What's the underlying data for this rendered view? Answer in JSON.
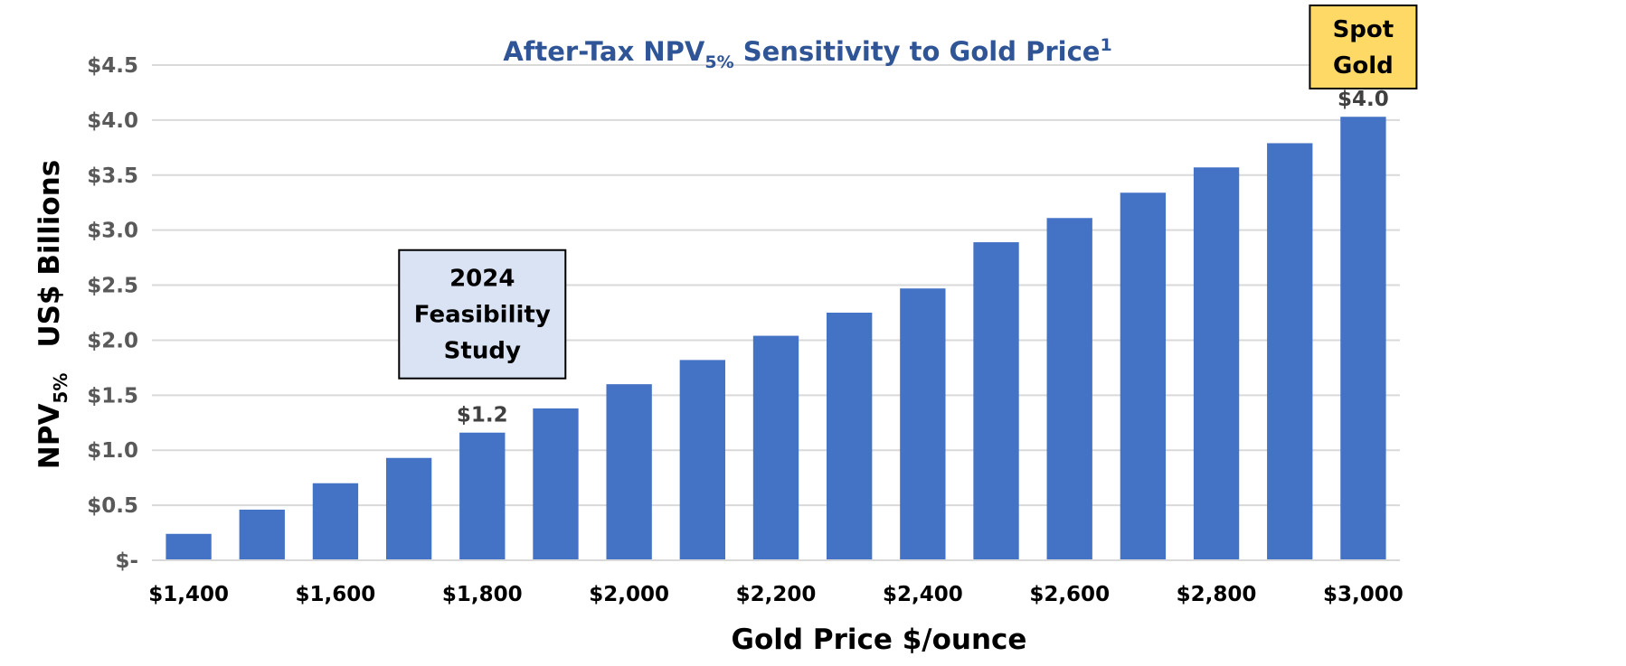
{
  "colors": {
    "bar": "#4472c4",
    "title": "#2f5597",
    "grid": "#d9d9d9",
    "feasibility_box_fill": "#dae3f3",
    "spot_box_fill": "#ffd966"
  },
  "chart_data": {
    "type": "bar",
    "title": {
      "prefix": "After-Tax NPV",
      "sub": "5%",
      "suffix": " Sensitivity to Gold Price",
      "sup": "1"
    },
    "xlabel": "Gold Price $/ounce",
    "ylabel": {
      "npv": "NPV",
      "sub": "5%",
      "units": "US$ Billions"
    },
    "categories": [
      "$1,400",
      "$1,500",
      "$1,600",
      "$1,700",
      "$1,800",
      "$1,900",
      "$2,000",
      "$2,100",
      "$2,200",
      "$2,300",
      "$2,400",
      "$2,500",
      "$2,600",
      "$2,700",
      "$2,800",
      "$2,900",
      "$3,000"
    ],
    "x_tick_labels": [
      "$1,400",
      "$1,600",
      "$1,800",
      "$2,000",
      "$2,200",
      "$2,400",
      "$2,600",
      "$2,800",
      "$3,000"
    ],
    "values": [
      0.24,
      0.46,
      0.7,
      0.93,
      1.16,
      1.38,
      1.6,
      1.82,
      2.04,
      2.25,
      2.47,
      2.89,
      3.11,
      3.34,
      3.57,
      3.79,
      4.03
    ],
    "ylim": [
      0,
      4.5
    ],
    "y_ticks": [
      0,
      0.5,
      1.0,
      1.5,
      2.0,
      2.5,
      3.0,
      3.5,
      4.0,
      4.5
    ],
    "y_tick_labels": [
      "$-",
      "$0.5",
      "$1.0",
      "$1.5",
      "$2.0",
      "$2.5",
      "$3.0",
      "$3.5",
      "$4.0",
      "$4.5"
    ],
    "grid": true,
    "data_labels": [
      {
        "category": "$1,800",
        "text": "$1.2"
      },
      {
        "category": "$3,000",
        "text": "$4.0"
      }
    ],
    "annotations": [
      {
        "category": "$1,800",
        "lines": [
          "2024",
          "Feasibility",
          "Study"
        ]
      },
      {
        "category": "$3,000",
        "lines": [
          "Spot",
          "Gold"
        ]
      }
    ]
  }
}
